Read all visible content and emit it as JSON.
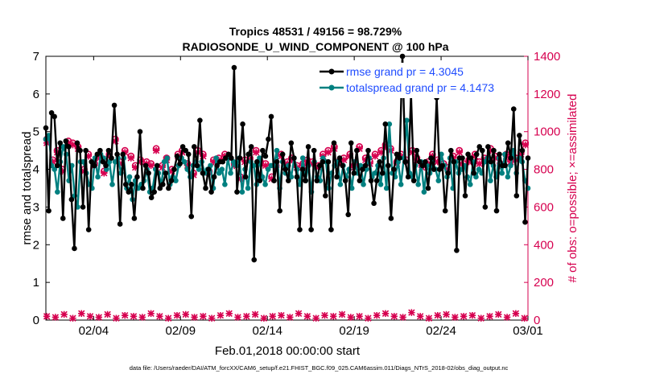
{
  "chart_data": {
    "type": "line",
    "title": "Tropics 48531 / 49156 = 98.729%",
    "subtitle": "RADIOSONDE_U_WIND_COMPONENT @ 100 hPa",
    "xlabel": "Feb.01,2018 00:00:00 start",
    "ylabel_left": "rmse and totalspread",
    "ylabel_right": "# of obs: o=possible; ×=assimilated",
    "footer": "data file: /Users/raeder/DAI/ATM_forcXX/CAM6_setup/f.e21.FHIST_BGC.f09_025.CAM6assim.011/Diags_NTrS_2018-02/obs_diag_output.nc",
    "x_ticks": [
      "02/04",
      "02/09",
      "02/14",
      "02/19",
      "02/24",
      "03/01"
    ],
    "x_tick_days": [
      3,
      8,
      13,
      18,
      23,
      28
    ],
    "x_range_days": [
      0.25,
      28.0
    ],
    "ylim_left": [
      0,
      7
    ],
    "ylim_right": [
      0,
      1400
    ],
    "y_ticks_left": [
      "0",
      "1",
      "2",
      "3",
      "4",
      "5",
      "6",
      "7"
    ],
    "y_ticks_right": [
      "0",
      "200",
      "400",
      "600",
      "800",
      "1000",
      "1200",
      "1400"
    ],
    "series": [
      {
        "name": "rmse",
        "legend": "rmse grand pr = 4.3045",
        "color": "#000000",
        "axis": "left",
        "values": [
          5.1,
          2.9,
          5.5,
          5.4,
          4.1,
          4.7,
          2.7,
          4.75,
          4.6,
          3.2,
          1.9,
          4.7,
          4.5,
          3.0,
          4.5,
          2.4,
          4.2,
          4.1,
          4.4,
          4.5,
          4.2,
          4.1,
          4.5,
          4.3,
          5.7,
          4.4,
          2.55,
          4.4,
          3.6,
          3.4,
          3.6,
          2.7,
          3.8,
          5.0,
          3.5,
          4.1,
          3.9,
          3.25,
          3.4,
          4.1,
          3.5,
          3.6,
          3.9,
          3.5,
          3.7,
          4.0,
          4.35,
          4.15,
          4.6,
          4.5,
          4.4,
          2.75,
          4.6,
          4.1,
          5.3,
          3.9,
          3.5,
          4.0,
          3.4,
          3.8,
          4.1,
          4.2,
          4.2,
          4.3,
          4.4,
          4.3,
          6.7,
          3.4,
          4.3,
          5.2,
          3.8,
          4.4,
          4.6,
          1.6,
          4.2,
          3.7,
          4.5,
          4.35,
          4.8,
          5.4,
          3.7,
          4.2,
          2.9,
          4.4,
          4.0,
          3.7,
          4.7,
          4.3,
          3.8,
          2.4,
          4.0,
          3.7,
          4.6,
          2.4,
          4.5,
          3.7,
          4.1,
          4.2,
          3.3,
          4.2,
          2.4,
          4.7,
          3.8,
          4.3,
          4.1,
          3.7,
          2.8,
          4.7,
          3.9,
          4.5,
          3.7,
          4.0,
          4.1,
          4.5,
          3.7,
          3.1,
          3.7,
          4.2,
          3.9,
          5.2,
          4.1,
          2.7,
          4.0,
          4.4,
          4.3,
          7.0,
          4.2,
          3.8,
          6.0,
          3.7,
          4.5,
          4.2,
          4.1,
          4.2,
          3.5,
          4.3,
          4.0,
          5.9,
          4.0,
          4.1,
          2.9,
          3.9,
          4.5,
          4.2,
          1.85,
          4.3,
          4.3,
          3.3,
          4.4,
          4.3,
          3.9,
          4.4,
          4.6,
          4.5,
          3.0,
          4.6,
          4.2,
          4.5,
          2.9,
          4.4,
          4.1,
          4.1,
          4.7,
          4.3,
          5.6,
          3.3,
          4.9,
          4.5,
          2.6,
          4.3
        ]
      },
      {
        "name": "totalspread",
        "legend": "totalspread grand pr = 4.1473",
        "color": "#008080",
        "axis": "left",
        "values": [
          4.8,
          4.9,
          4.1,
          4.0,
          3.4,
          4.2,
          4.6,
          4.4,
          3.7,
          4.1,
          3.3,
          3.0,
          4.2,
          4.2,
          3.9,
          3.6,
          3.5,
          4.3,
          3.8,
          4.4,
          4.3,
          4.0,
          4.2,
          3.6,
          4.2,
          4.3,
          3.9,
          4.3,
          3.5,
          3.8,
          3.2,
          3.7,
          3.5,
          3.6,
          3.7,
          4.0,
          3.4,
          3.5,
          4.0,
          3.9,
          3.6,
          4.2,
          4.3,
          3.6,
          3.8,
          3.7,
          4.1,
          4.3,
          4.2,
          4.0,
          3.8,
          4.1,
          4.2,
          4.0,
          4.2,
          3.9,
          4.0,
          4.1,
          3.5,
          4.3,
          3.9,
          4.0,
          3.6,
          4.3,
          3.9,
          4.2,
          4.1,
          4.3,
          3.4,
          4.0,
          3.5,
          4.2,
          4.1,
          3.6,
          4.3,
          3.8,
          3.6,
          4.0,
          4.1,
          4.1,
          4.5,
          3.5,
          4.2,
          3.9,
          4.1,
          3.8,
          4.3,
          4.0,
          3.6,
          4.3,
          3.7,
          4.1,
          3.4,
          4.2,
          3.8,
          3.7,
          4.3,
          4.2,
          3.5,
          3.9,
          4.1,
          4.2,
          3.6,
          4.1,
          3.8,
          4.0,
          3.5,
          4.2,
          3.9,
          4.1,
          3.6,
          4.0,
          4.3,
          3.8,
          3.9,
          4.1,
          3.6,
          4.3,
          3.5,
          5.2,
          3.9,
          3.8,
          4.2,
          3.6,
          4.3,
          5.3,
          3.9,
          3.8,
          4.1,
          3.6,
          4.2,
          3.4,
          4.1,
          3.9,
          4.2,
          4.0,
          3.7,
          4.4,
          4.1,
          3.8,
          4.3,
          3.5,
          4.2,
          3.9,
          4.0,
          4.1,
          3.8,
          3.6,
          4.2,
          3.8,
          4.0,
          3.9,
          4.2,
          4.3,
          3.7,
          4.1,
          3.8,
          4.3,
          3.9,
          4.4,
          3.8,
          4.1,
          4.5,
          3.9,
          4.3,
          4.2,
          3.7,
          3.5
        ]
      },
      {
        "name": "obs possible",
        "color": "#d6004f",
        "axis": "right",
        "marker": "circle",
        "x_days": [
          0.3,
          0.65,
          0.9,
          1.2,
          1.55,
          1.8,
          2.1,
          2.45,
          2.7,
          3.05,
          3.35,
          3.6,
          3.9,
          4.25,
          4.5,
          4.8,
          5.15,
          5.4,
          5.7,
          6.05,
          6.3,
          6.6,
          6.95,
          7.2,
          7.5,
          7.85,
          8.1,
          8.4,
          8.75,
          9.0,
          9.3,
          9.65,
          9.9,
          10.2,
          10.55,
          10.8,
          11.1,
          11.45,
          11.7,
          12.0,
          12.35,
          12.6,
          12.9,
          13.25,
          13.5,
          13.8,
          14.15,
          14.4,
          14.7,
          15.05,
          15.3,
          15.6,
          15.95,
          16.2,
          16.5,
          16.85,
          17.1,
          17.4,
          17.75,
          18.0,
          18.3,
          18.65,
          18.9,
          19.2,
          19.55,
          19.8,
          20.1,
          20.45,
          20.7,
          21.0,
          21.35,
          21.6,
          21.9,
          22.25,
          22.5,
          22.8,
          23.15,
          23.4,
          23.7,
          24.05,
          24.3,
          24.6,
          24.95,
          25.2,
          25.5,
          25.85,
          26.1,
          26.4,
          26.75,
          27.0,
          27.3,
          27.6,
          27.85
        ],
        "values": [
          960,
          850,
          900,
          800,
          950,
          940,
          920,
          800,
          880,
          830,
          870,
          790,
          880,
          960,
          840,
          900,
          870,
          820,
          850,
          840,
          830,
          910,
          820,
          860,
          800,
          880,
          900,
          830,
          780,
          900,
          880,
          790,
          850,
          860,
          880,
          870,
          830,
          760,
          850,
          860,
          900,
          840,
          830,
          760,
          820,
          880,
          840,
          860,
          820,
          830,
          850,
          840,
          820,
          880,
          900,
          920,
          840,
          860,
          880,
          820,
          920,
          860,
          840,
          880,
          900,
          930,
          910,
          840,
          880,
          850,
          900,
          860,
          820,
          840,
          880,
          850,
          830,
          810,
          870,
          900,
          830,
          850,
          880,
          840,
          860,
          910,
          870,
          830,
          880,
          850,
          860,
          890,
          940
        ]
      },
      {
        "name": "obs assimilated",
        "color": "#d6004f",
        "axis": "right",
        "marker": "x",
        "x_days": [
          0.3,
          0.65,
          0.9,
          1.2,
          1.55,
          1.8,
          2.1,
          2.45,
          2.7,
          3.05,
          3.35,
          3.6,
          3.9,
          4.25,
          4.5,
          4.8,
          5.15,
          5.4,
          5.7,
          6.05,
          6.3,
          6.6,
          6.95,
          7.2,
          7.5,
          7.85,
          8.1,
          8.4,
          8.75,
          9.0,
          9.3,
          9.65,
          9.9,
          10.2,
          10.55,
          10.8,
          11.1,
          11.45,
          11.7,
          12.0,
          12.35,
          12.6,
          12.9,
          13.25,
          13.5,
          13.8,
          14.15,
          14.4,
          14.7,
          15.05,
          15.3,
          15.6,
          15.95,
          16.2,
          16.5,
          16.85,
          17.1,
          17.4,
          17.75,
          18.0,
          18.3,
          18.65,
          18.9,
          19.2,
          19.55,
          19.8,
          20.1,
          20.45,
          20.7,
          21.0,
          21.35,
          21.6,
          21.9,
          22.25,
          22.5,
          22.8,
          23.15,
          23.4,
          23.7,
          24.05,
          24.3,
          24.6,
          24.95,
          25.2,
          25.5,
          25.85,
          26.1,
          26.4,
          26.75,
          27.0,
          27.3,
          27.6,
          27.85
        ],
        "values": [
          940,
          840,
          890,
          790,
          940,
          930,
          910,
          790,
          870,
          820,
          860,
          780,
          870,
          950,
          830,
          890,
          860,
          810,
          840,
          830,
          820,
          900,
          810,
          850,
          790,
          870,
          890,
          820,
          770,
          890,
          870,
          780,
          840,
          850,
          870,
          860,
          820,
          750,
          840,
          850,
          890,
          830,
          820,
          750,
          810,
          870,
          830,
          850,
          810,
          820,
          840,
          830,
          810,
          870,
          890,
          910,
          830,
          850,
          870,
          810,
          910,
          850,
          830,
          870,
          890,
          920,
          900,
          830,
          870,
          840,
          890,
          850,
          810,
          830,
          870,
          840,
          820,
          800,
          860,
          890,
          820,
          840,
          870,
          830,
          850,
          900,
          860,
          820,
          870,
          840,
          850,
          880,
          930
        ]
      },
      {
        "name": "obs possible (low)",
        "color": "#d6004f",
        "axis": "right",
        "marker": "x",
        "x_days": [
          0.3,
          0.8,
          1.3,
          1.8,
          2.3,
          2.8,
          3.3,
          3.8,
          4.3,
          4.8,
          5.3,
          5.8,
          6.3,
          6.8,
          7.3,
          7.8,
          8.3,
          8.8,
          9.3,
          9.8,
          10.3,
          10.8,
          11.3,
          11.8,
          12.3,
          12.8,
          13.3,
          13.8,
          14.3,
          14.8,
          15.3,
          15.8,
          16.3,
          16.8,
          17.3,
          17.8,
          18.3,
          18.8,
          19.3,
          19.8,
          20.3,
          20.8,
          21.3,
          21.8,
          22.3,
          22.8,
          23.3,
          23.8,
          24.3,
          24.8,
          25.3,
          25.8,
          26.3,
          26.8,
          27.3,
          27.8
        ],
        "values": [
          20,
          15,
          30,
          10,
          35,
          20,
          15,
          30,
          10,
          25,
          20,
          15,
          35,
          20,
          10,
          25,
          30,
          15,
          20,
          10,
          25,
          35,
          15,
          20,
          30,
          10,
          20,
          25,
          15,
          35,
          20,
          10,
          25,
          20,
          30,
          15,
          20,
          10,
          25,
          35,
          20,
          15,
          40,
          20,
          10,
          25,
          30,
          15,
          20,
          25,
          10,
          20,
          30,
          15,
          35,
          10
        ]
      }
    ]
  }
}
